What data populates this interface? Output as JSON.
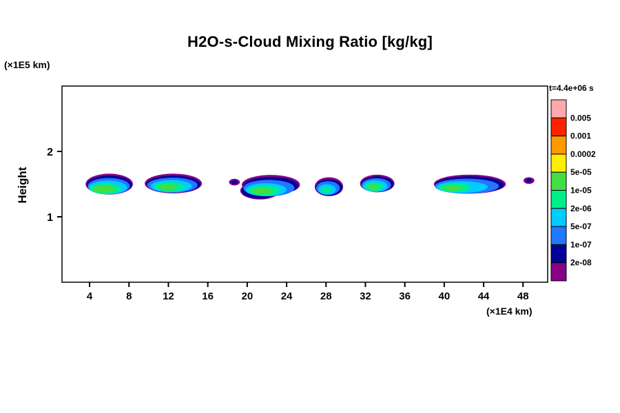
{
  "header": {
    "title": "H2O-s-Cloud Mixing Ratio [kg/kg]"
  },
  "axes": {
    "y_unit": "(×1E5 km)",
    "x_unit": "(×1E4 km)",
    "y_label": "Height"
  },
  "legend_header": "t=4.4e+06 s",
  "chart_data": {
    "type": "heatmap",
    "subtype": "filled-contour",
    "title": "H2O-s-Cloud Mixing Ratio [kg/kg]",
    "xlabel": "(×1E4 km)",
    "ylabel": "Height (×1E5 km)",
    "value_units": "kg/kg",
    "time_label": "t=4.4e+06 s",
    "xlim": [
      1.2,
      50.5
    ],
    "ylim": [
      0,
      3
    ],
    "x_ticks": [
      4,
      8,
      12,
      16,
      20,
      24,
      28,
      32,
      36,
      40,
      44,
      48
    ],
    "y_ticks": [
      1,
      2
    ],
    "grid": false,
    "legend_position": "right",
    "legend": {
      "colors_top_to_bottom": [
        "#ffaaaa",
        "#ff2200",
        "#ff9900",
        "#ffee00",
        "#44dd44",
        "#00ee88",
        "#00ccff",
        "#2277ff",
        "#000099",
        "#880088"
      ],
      "boundary_labels_top_to_bottom": [
        "0.005",
        "0.001",
        "0.0002",
        "5e-05",
        "1e-05",
        "2e-06",
        "5e-07",
        "1e-07",
        "2e-08"
      ],
      "levels_ascending": [
        2e-08,
        1e-07,
        5e-07,
        2e-06,
        1e-05,
        5e-05,
        0.0002,
        0.001,
        0.005
      ]
    },
    "clouds": [
      {
        "name": "cloud-1",
        "layers": [
          {
            "ci": 9,
            "cx": 6.0,
            "cy": 1.5,
            "rx": 2.4,
            "ry": 0.16
          },
          {
            "ci": 8,
            "cx": 6.0,
            "cy": 1.49,
            "rx": 2.3,
            "ry": 0.14
          },
          {
            "ci": 7,
            "cx": 5.95,
            "cy": 1.47,
            "rx": 2.15,
            "ry": 0.125
          },
          {
            "ci": 6,
            "cx": 5.85,
            "cy": 1.45,
            "rx": 1.95,
            "ry": 0.105
          },
          {
            "ci": 5,
            "cx": 5.6,
            "cy": 1.43,
            "rx": 1.55,
            "ry": 0.08
          },
          {
            "ci": 4,
            "cx": 5.45,
            "cy": 1.425,
            "rx": 1.1,
            "ry": 0.055
          }
        ]
      },
      {
        "name": "cloud-2",
        "layers": [
          {
            "ci": 9,
            "cx": 12.5,
            "cy": 1.51,
            "rx": 2.9,
            "ry": 0.15
          },
          {
            "ci": 8,
            "cx": 12.5,
            "cy": 1.5,
            "rx": 2.75,
            "ry": 0.13
          },
          {
            "ci": 7,
            "cx": 12.4,
            "cy": 1.485,
            "rx": 2.55,
            "ry": 0.115
          },
          {
            "ci": 6,
            "cx": 12.3,
            "cy": 1.47,
            "rx": 2.1,
            "ry": 0.095
          },
          {
            "ci": 5,
            "cx": 12.1,
            "cy": 1.46,
            "rx": 1.5,
            "ry": 0.07
          },
          {
            "ci": 4,
            "cx": 11.9,
            "cy": 1.455,
            "rx": 0.85,
            "ry": 0.045
          }
        ]
      },
      {
        "name": "cloud-3",
        "layers": [
          {
            "ci": 9,
            "cx": 18.7,
            "cy": 1.53,
            "rx": 0.55,
            "ry": 0.05
          },
          {
            "ci": 8,
            "cx": 18.7,
            "cy": 1.53,
            "rx": 0.32,
            "ry": 0.032
          }
        ]
      },
      {
        "name": "cloud-4",
        "layers": [
          {
            "ci": 9,
            "cx": 22.4,
            "cy": 1.49,
            "rx": 2.95,
            "ry": 0.15
          },
          {
            "ci": 9,
            "cx": 21.3,
            "cy": 1.4,
            "rx": 2.0,
            "ry": 0.135
          },
          {
            "ci": 8,
            "cx": 22.4,
            "cy": 1.475,
            "rx": 2.8,
            "ry": 0.135
          },
          {
            "ci": 8,
            "cx": 21.3,
            "cy": 1.4,
            "rx": 1.9,
            "ry": 0.12
          },
          {
            "ci": 7,
            "cx": 22.2,
            "cy": 1.44,
            "rx": 2.6,
            "ry": 0.125
          },
          {
            "ci": 6,
            "cx": 21.9,
            "cy": 1.415,
            "rx": 2.1,
            "ry": 0.1
          },
          {
            "ci": 5,
            "cx": 21.7,
            "cy": 1.4,
            "rx": 1.6,
            "ry": 0.075
          },
          {
            "ci": 4,
            "cx": 21.5,
            "cy": 1.395,
            "rx": 1.0,
            "ry": 0.05
          }
        ]
      },
      {
        "name": "cloud-5",
        "layers": [
          {
            "ci": 9,
            "cx": 28.3,
            "cy": 1.46,
            "rx": 1.45,
            "ry": 0.145
          },
          {
            "ci": 8,
            "cx": 28.3,
            "cy": 1.45,
            "rx": 1.35,
            "ry": 0.125
          },
          {
            "ci": 7,
            "cx": 28.2,
            "cy": 1.44,
            "rx": 1.2,
            "ry": 0.105
          },
          {
            "ci": 6,
            "cx": 28.1,
            "cy": 1.42,
            "rx": 0.9,
            "ry": 0.08
          },
          {
            "ci": 5,
            "cx": 28.0,
            "cy": 1.41,
            "rx": 0.5,
            "ry": 0.045
          }
        ]
      },
      {
        "name": "cloud-6",
        "layers": [
          {
            "ci": 9,
            "cx": 33.2,
            "cy": 1.51,
            "rx": 1.75,
            "ry": 0.135
          },
          {
            "ci": 8,
            "cx": 33.2,
            "cy": 1.5,
            "rx": 1.65,
            "ry": 0.12
          },
          {
            "ci": 7,
            "cx": 33.1,
            "cy": 1.485,
            "rx": 1.5,
            "ry": 0.105
          },
          {
            "ci": 6,
            "cx": 33.0,
            "cy": 1.47,
            "rx": 1.25,
            "ry": 0.09
          },
          {
            "ci": 5,
            "cx": 32.9,
            "cy": 1.46,
            "rx": 0.9,
            "ry": 0.065
          },
          {
            "ci": 4,
            "cx": 32.8,
            "cy": 1.455,
            "rx": 0.5,
            "ry": 0.04
          }
        ]
      },
      {
        "name": "cloud-7",
        "layers": [
          {
            "ci": 9,
            "cx": 42.6,
            "cy": 1.5,
            "rx": 3.65,
            "ry": 0.145
          },
          {
            "ci": 8,
            "cx": 42.55,
            "cy": 1.49,
            "rx": 3.5,
            "ry": 0.13
          },
          {
            "ci": 7,
            "cx": 42.3,
            "cy": 1.47,
            "rx": 3.25,
            "ry": 0.115
          },
          {
            "ci": 6,
            "cx": 41.8,
            "cy": 1.455,
            "rx": 2.6,
            "ry": 0.09
          },
          {
            "ci": 5,
            "cx": 41.1,
            "cy": 1.445,
            "rx": 1.6,
            "ry": 0.065
          },
          {
            "ci": 4,
            "cx": 40.8,
            "cy": 1.44,
            "rx": 0.9,
            "ry": 0.04
          }
        ]
      },
      {
        "name": "cloud-8",
        "layers": [
          {
            "ci": 9,
            "cx": 48.6,
            "cy": 1.555,
            "rx": 0.55,
            "ry": 0.05
          },
          {
            "ci": 8,
            "cx": 48.6,
            "cy": 1.555,
            "rx": 0.3,
            "ry": 0.03
          }
        ]
      }
    ]
  }
}
